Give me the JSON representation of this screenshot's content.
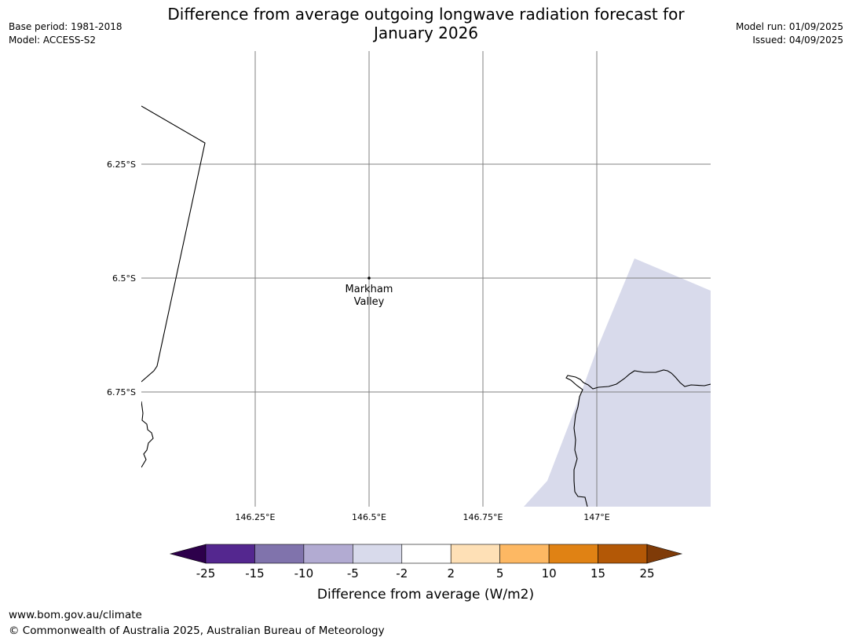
{
  "header": {
    "base_period": "Base period: 1981-2018",
    "model": "Model: ACCESS-S2",
    "model_run": "Model run: 01/09/2025",
    "issued": "Issued: 04/09/2025",
    "title_line1": "Difference from average outgoing longwave radiation forecast for",
    "title_line2": "January 2026"
  },
  "map": {
    "lat_labels": [
      "6.25°S",
      "6.5°S",
      "6.75°S"
    ],
    "lon_labels": [
      "146.25°E",
      "146.5°E",
      "146.75°E",
      "147°E"
    ],
    "place": {
      "name_line1": "Markham",
      "name_line2": "Valley",
      "lon": 146.5,
      "lat": -6.5
    },
    "shaded_category": "-5 to -2"
  },
  "colorbar": {
    "tick_labels": [
      "-25",
      "-15",
      "-10",
      "-5",
      "-2",
      "2",
      "5",
      "10",
      "15",
      "25"
    ],
    "bin_colors": [
      "#54278f",
      "#8073ac",
      "#b2abd2",
      "#d8daeb",
      "#ffffff",
      "#fee0b6",
      "#fdb863",
      "#e08214",
      "#b35806"
    ],
    "under_color": "#2d004b",
    "over_color": "#7f3b08",
    "label": "Difference from average (W/m2)"
  },
  "footer": {
    "url": "www.bom.gov.au/climate",
    "copyright": "© Commonwealth of Australia 2025, Australian Bureau of Meteorology"
  }
}
